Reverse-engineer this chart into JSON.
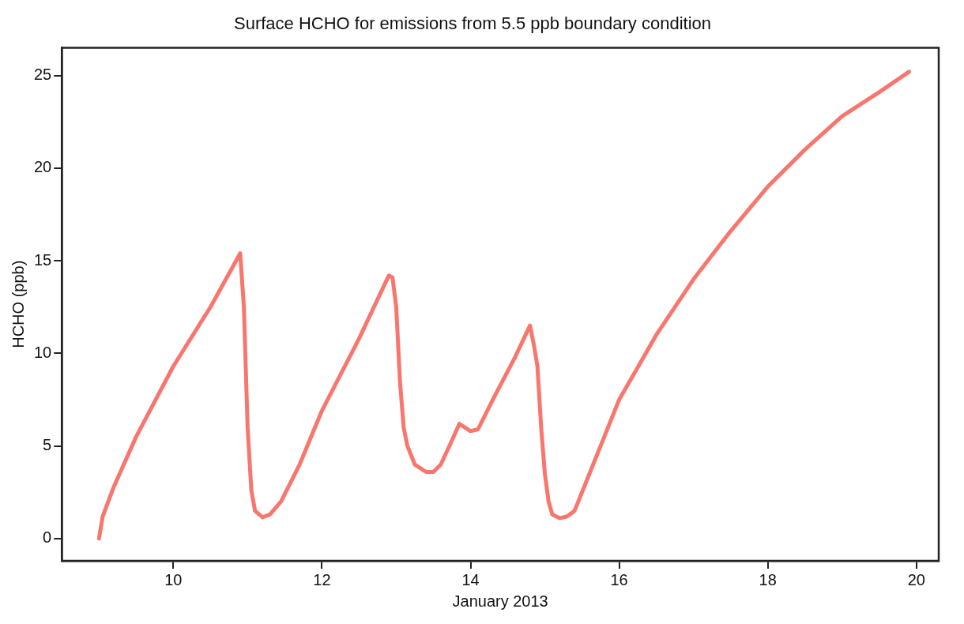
{
  "chart_data": {
    "type": "line",
    "title": "Surface HCHO for emissions from 5.5 ppb boundary condition",
    "xlabel": "January 2013",
    "ylabel": "HCHO (ppb)",
    "x": [
      9.0,
      9.05,
      9.2,
      9.5,
      10,
      10.5,
      10.9,
      10.95,
      11.0,
      11.05,
      11.1,
      11.2,
      11.3,
      11.45,
      11.7,
      12,
      12.5,
      12.9,
      12.95,
      13.0,
      13.05,
      13.1,
      13.15,
      13.25,
      13.4,
      13.5,
      13.6,
      13.75,
      13.85,
      14.0,
      14.1,
      14.3,
      14.6,
      14.8,
      14.85,
      14.9,
      14.95,
      15.0,
      15.05,
      15.1,
      15.2,
      15.3,
      15.4,
      15.6,
      16,
      16.5,
      17,
      17.5,
      18,
      18.5,
      19,
      19.5,
      19.9
    ],
    "series": [
      {
        "color": "#f8766d",
        "values": [
          0,
          1.2,
          2.8,
          5.5,
          9.3,
          12.5,
          15.4,
          12.5,
          6,
          2.6,
          1.5,
          1.15,
          1.3,
          2,
          4,
          6.9,
          10.8,
          14.2,
          14.1,
          12.5,
          8.5,
          6,
          5,
          4,
          3.6,
          3.6,
          4,
          5.3,
          6.2,
          5.8,
          5.9,
          7.5,
          9.8,
          11.5,
          10.5,
          9.3,
          6,
          3.5,
          2,
          1.3,
          1.1,
          1.2,
          1.5,
          3.5,
          7.5,
          11,
          14,
          16.6,
          19,
          21,
          22.8,
          24.1,
          25.2
        ]
      }
    ],
    "xlim": [
      8.5,
      20.3
    ],
    "xticks": [
      10,
      12,
      14,
      16,
      18,
      20
    ],
    "ylim": [
      -1.2,
      26.5
    ],
    "yticks": [
      0,
      5,
      10,
      15,
      20,
      25
    ],
    "grid": false,
    "legend": false,
    "marker": "none",
    "line_style": "solid"
  }
}
